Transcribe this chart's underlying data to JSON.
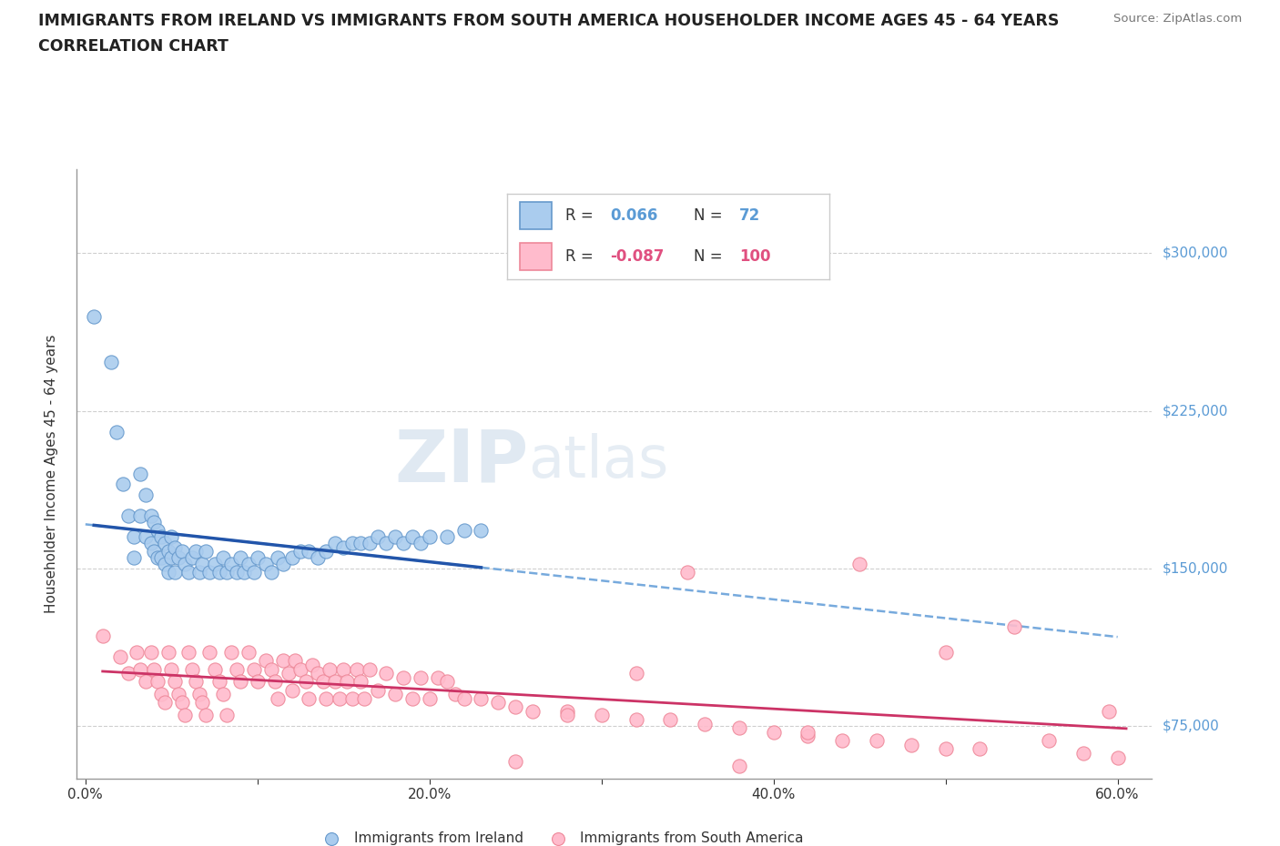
{
  "title_line1": "IMMIGRANTS FROM IRELAND VS IMMIGRANTS FROM SOUTH AMERICA HOUSEHOLDER INCOME AGES 45 - 64 YEARS",
  "title_line2": "CORRELATION CHART",
  "source_text": "Source: ZipAtlas.com",
  "ylabel": "Householder Income Ages 45 - 64 years",
  "xlim": [
    -0.005,
    0.62
  ],
  "ylim": [
    50000,
    340000
  ],
  "yticks": [
    75000,
    150000,
    225000,
    300000
  ],
  "ytick_labels": [
    "$75,000",
    "$150,000",
    "$225,000",
    "$300,000"
  ],
  "xticks": [
    0.0,
    0.1,
    0.2,
    0.3,
    0.4,
    0.5,
    0.6
  ],
  "xtick_labels": [
    "0.0%",
    "",
    "20.0%",
    "",
    "40.0%",
    "",
    "60.0%"
  ],
  "ireland_R": 0.066,
  "ireland_N": 72,
  "south_america_R": -0.087,
  "south_america_N": 100,
  "ireland_fill": "#aaccee",
  "ireland_edge": "#6699cc",
  "south_fill": "#ffbbcc",
  "south_edge": "#ee8899",
  "blue_solid_color": "#2255aa",
  "blue_dash_color": "#77aadd",
  "pink_solid_color": "#cc3366",
  "grid_color": "#bbbbbb",
  "watermark_zip_color": "#c5d5e5",
  "watermark_atlas_color": "#c5d5e5",
  "legend_label_ireland": "Immigrants from Ireland",
  "legend_label_south_america": "Immigrants from South America",
  "ireland_x": [
    0.005,
    0.015,
    0.018,
    0.022,
    0.025,
    0.028,
    0.028,
    0.032,
    0.032,
    0.035,
    0.035,
    0.038,
    0.038,
    0.04,
    0.04,
    0.042,
    0.042,
    0.044,
    0.044,
    0.046,
    0.046,
    0.048,
    0.048,
    0.05,
    0.05,
    0.052,
    0.052,
    0.054,
    0.056,
    0.058,
    0.06,
    0.062,
    0.064,
    0.066,
    0.068,
    0.07,
    0.072,
    0.075,
    0.078,
    0.08,
    0.082,
    0.085,
    0.088,
    0.09,
    0.092,
    0.095,
    0.098,
    0.1,
    0.105,
    0.108,
    0.112,
    0.115,
    0.12,
    0.125,
    0.13,
    0.135,
    0.14,
    0.145,
    0.15,
    0.155,
    0.16,
    0.165,
    0.17,
    0.175,
    0.18,
    0.185,
    0.19,
    0.195,
    0.2,
    0.21,
    0.22,
    0.23
  ],
  "ireland_y": [
    270000,
    248000,
    215000,
    190000,
    175000,
    165000,
    155000,
    195000,
    175000,
    185000,
    165000,
    175000,
    162000,
    172000,
    158000,
    168000,
    155000,
    165000,
    155000,
    162000,
    152000,
    158000,
    148000,
    165000,
    155000,
    160000,
    148000,
    155000,
    158000,
    152000,
    148000,
    155000,
    158000,
    148000,
    152000,
    158000,
    148000,
    152000,
    148000,
    155000,
    148000,
    152000,
    148000,
    155000,
    148000,
    152000,
    148000,
    155000,
    152000,
    148000,
    155000,
    152000,
    155000,
    158000,
    158000,
    155000,
    158000,
    162000,
    160000,
    162000,
    162000,
    162000,
    165000,
    162000,
    165000,
    162000,
    165000,
    162000,
    165000,
    165000,
    168000,
    168000
  ],
  "south_america_x": [
    0.01,
    0.02,
    0.025,
    0.03,
    0.032,
    0.035,
    0.038,
    0.04,
    0.042,
    0.044,
    0.046,
    0.048,
    0.05,
    0.052,
    0.054,
    0.056,
    0.058,
    0.06,
    0.062,
    0.064,
    0.066,
    0.068,
    0.07,
    0.072,
    0.075,
    0.078,
    0.08,
    0.082,
    0.085,
    0.088,
    0.09,
    0.095,
    0.098,
    0.1,
    0.105,
    0.108,
    0.11,
    0.112,
    0.115,
    0.118,
    0.12,
    0.122,
    0.125,
    0.128,
    0.13,
    0.132,
    0.135,
    0.138,
    0.14,
    0.142,
    0.145,
    0.148,
    0.15,
    0.152,
    0.155,
    0.158,
    0.16,
    0.162,
    0.165,
    0.17,
    0.175,
    0.18,
    0.185,
    0.19,
    0.195,
    0.2,
    0.205,
    0.21,
    0.215,
    0.22,
    0.23,
    0.24,
    0.25,
    0.26,
    0.28,
    0.3,
    0.32,
    0.34,
    0.36,
    0.38,
    0.4,
    0.42,
    0.44,
    0.46,
    0.48,
    0.5,
    0.52,
    0.54,
    0.56,
    0.58,
    0.595,
    0.6,
    0.45,
    0.35,
    0.25,
    0.42,
    0.5,
    0.38,
    0.28,
    0.32
  ],
  "south_america_y": [
    118000,
    108000,
    100000,
    110000,
    102000,
    96000,
    110000,
    102000,
    96000,
    90000,
    86000,
    110000,
    102000,
    96000,
    90000,
    86000,
    80000,
    110000,
    102000,
    96000,
    90000,
    86000,
    80000,
    110000,
    102000,
    96000,
    90000,
    80000,
    110000,
    102000,
    96000,
    110000,
    102000,
    96000,
    106000,
    102000,
    96000,
    88000,
    106000,
    100000,
    92000,
    106000,
    102000,
    96000,
    88000,
    104000,
    100000,
    96000,
    88000,
    102000,
    96000,
    88000,
    102000,
    96000,
    88000,
    102000,
    96000,
    88000,
    102000,
    92000,
    100000,
    90000,
    98000,
    88000,
    98000,
    88000,
    98000,
    96000,
    90000,
    88000,
    88000,
    86000,
    84000,
    82000,
    82000,
    80000,
    78000,
    78000,
    76000,
    74000,
    72000,
    70000,
    68000,
    68000,
    66000,
    64000,
    64000,
    122000,
    68000,
    62000,
    82000,
    60000,
    152000,
    148000,
    58000,
    72000,
    110000,
    56000,
    80000,
    100000
  ]
}
